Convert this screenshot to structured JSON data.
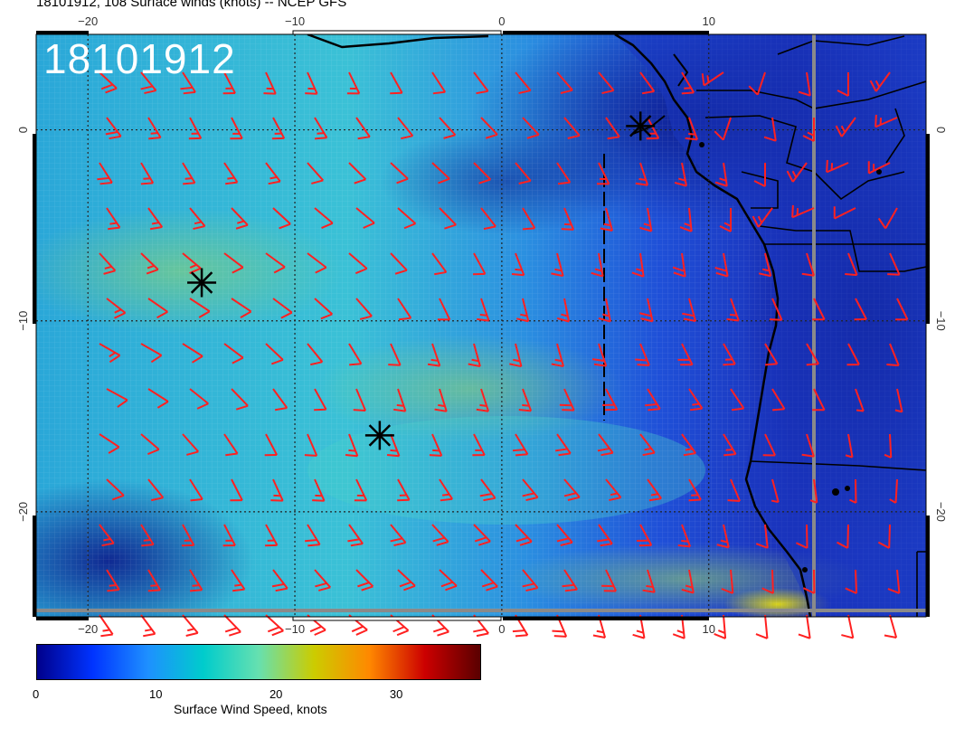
{
  "header": {
    "title": "18101912, 108 Surface winds (knots) -- NCEP GFS",
    "stamp": "18101912"
  },
  "map": {
    "lon_ticks_bottom": [
      "−20",
      "−10",
      "0",
      "10"
    ],
    "lon_ticks_top": [
      "−20",
      "−10",
      "0",
      "10"
    ],
    "lat_ticks": [
      "0",
      "−10",
      "−20"
    ],
    "lon_range": [
      -22.5,
      20.5
    ],
    "lat_range": [
      -25.5,
      5
    ],
    "gridlines": "dotted every 10 degrees",
    "colors": {
      "barb": "#ff2020",
      "coastline": "#000000",
      "storm_marker": "#000000",
      "grid": "#333333"
    },
    "storm_markers": [
      {
        "lon": -14.5,
        "lat": -8,
        "symbol": "asterisk"
      },
      {
        "lon": -5.9,
        "lat": -16,
        "symbol": "asterisk"
      },
      {
        "lon": 6.7,
        "lat": 0.2,
        "symbol": "asterisk"
      }
    ]
  },
  "colorbar": {
    "label": "Surface Wind Speed, knots",
    "ticks": [
      "0",
      "10",
      "20",
      "30"
    ],
    "range": [
      0,
      37
    ],
    "colormap": [
      "#00008b",
      "#0033ff",
      "#1e90ff",
      "#00cccc",
      "#66e0b0",
      "#cccc00",
      "#ff8800",
      "#cc0000",
      "#5a0000"
    ]
  }
}
